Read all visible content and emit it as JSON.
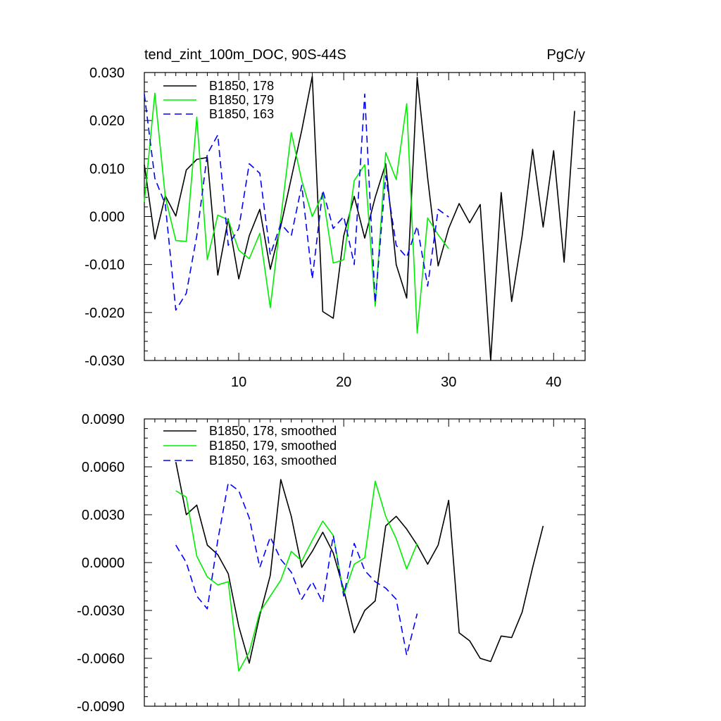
{
  "chart_data": [
    {
      "type": "line",
      "title": "tend_zint_100m_DOC, 90S-44S",
      "units": "PgC/y",
      "xlabel": "",
      "ylabel": "",
      "xlim": [
        1,
        43
      ],
      "ylim": [
        -0.03,
        0.03
      ],
      "x_ticks": [
        10,
        20,
        30,
        40
      ],
      "x_tick_labels": [
        "10",
        "20",
        "30",
        "40"
      ],
      "y_ticks": [
        -0.03,
        -0.02,
        -0.01,
        0.0,
        0.01,
        0.02,
        0.03
      ],
      "y_tick_labels": [
        "-0.030",
        "-0.020",
        "-0.010",
        "0.000",
        "0.010",
        "0.020",
        "0.030"
      ],
      "legend_position": "top-left",
      "series": [
        {
          "name": "B1850, 178",
          "color": "#000000",
          "dash": "solid",
          "x": [
            1,
            2,
            3,
            4,
            5,
            6,
            7,
            8,
            9,
            10,
            11,
            12,
            13,
            14,
            15,
            16,
            17,
            18,
            19,
            20,
            21,
            22,
            23,
            24,
            25,
            26,
            27,
            28,
            29,
            30,
            31,
            32,
            33,
            34,
            35,
            36,
            37,
            38,
            39,
            40,
            41,
            42
          ],
          "values": [
            0.0108,
            -0.0047,
            0.0043,
            0.0001,
            0.0097,
            0.0119,
            0.0123,
            -0.0122,
            -0.0005,
            -0.013,
            -0.004,
            0.0015,
            -0.011,
            -0.002,
            0.008,
            0.018,
            0.0292,
            -0.0198,
            -0.0212,
            -0.004,
            0.0042,
            -0.0045,
            0.004,
            0.011,
            -0.01,
            -0.017,
            0.029,
            0.008,
            -0.0103,
            -0.0025,
            0.0027,
            -0.0013,
            0.0025,
            -0.03,
            0.005,
            -0.0177,
            -0.004,
            0.014,
            -0.0022,
            0.0137,
            -0.0095,
            0.022
          ]
        },
        {
          "name": "B1850, 179",
          "color": "#00ee00",
          "dash": "solid",
          "x": [
            1,
            2,
            3,
            4,
            5,
            6,
            7,
            8,
            9,
            10,
            11,
            12,
            13,
            14,
            15,
            16,
            17,
            18,
            19,
            20,
            21,
            22,
            23,
            24,
            25,
            26,
            27,
            28,
            29,
            30
          ],
          "values": [
            0.003,
            0.0257,
            0.004,
            -0.005,
            -0.0052,
            0.0207,
            -0.009,
            0.0003,
            -0.0007,
            -0.007,
            -0.0088,
            -0.0035,
            -0.019,
            -0.0003,
            0.0175,
            0.0075,
            0.0,
            0.0047,
            -0.0097,
            -0.009,
            0.0075,
            0.0108,
            -0.0187,
            0.0133,
            0.0077,
            0.0235,
            -0.0243,
            -0.0003,
            -0.0038,
            -0.0067
          ]
        },
        {
          "name": "B1850, 163",
          "color": "#0000ff",
          "dash": "dashed",
          "x": [
            1,
            2,
            3,
            4,
            5,
            6,
            7,
            8,
            9,
            10,
            11,
            12,
            13,
            14,
            15,
            16,
            17,
            18,
            19,
            20,
            21,
            22,
            23,
            24,
            25,
            26,
            27,
            28,
            29,
            30
          ],
          "values": [
            0.0255,
            0.008,
            0.0025,
            -0.0195,
            -0.016,
            -0.004,
            0.013,
            0.017,
            -0.006,
            -0.0025,
            0.011,
            0.009,
            -0.008,
            -0.0015,
            -0.004,
            0.0065,
            -0.013,
            0.0055,
            -0.0025,
            0.0,
            -0.01,
            0.0255,
            -0.018,
            0.0085,
            -0.006,
            -0.0085,
            -0.002,
            -0.0145,
            0.0015,
            -0.0001
          ]
        }
      ]
    },
    {
      "type": "line",
      "title": "",
      "xlabel": "",
      "ylabel": "",
      "xlim": [
        1,
        43
      ],
      "ylim": [
        -0.009,
        0.009
      ],
      "x_ticks": [
        10,
        20,
        30,
        40
      ],
      "x_tick_labels": [
        "",
        "",
        "",
        ""
      ],
      "y_ticks": [
        -0.009,
        -0.006,
        -0.003,
        0.0,
        0.003,
        0.006,
        0.009
      ],
      "y_tick_labels": [
        "-0.0090",
        "-0.0060",
        "-0.0030",
        "0.0000",
        "0.0030",
        "0.0060",
        "0.0090"
      ],
      "legend_position": "top-left",
      "series": [
        {
          "name": "B1850, 178, smoothed",
          "color": "#000000",
          "dash": "solid",
          "x": [
            4,
            5,
            6,
            7,
            8,
            9,
            10,
            11,
            12,
            13,
            14,
            15,
            16,
            17,
            18,
            19,
            20,
            21,
            22,
            23,
            24,
            25,
            26,
            27,
            28,
            29,
            30,
            31,
            32,
            33,
            34,
            35,
            36,
            37,
            38,
            39
          ],
          "values": [
            0.0063,
            0.003,
            0.0036,
            0.0011,
            0.0005,
            -0.0007,
            -0.004,
            -0.0063,
            -0.0033,
            -0.0008,
            0.0052,
            0.0029,
            -0.0003,
            0.0007,
            0.0019,
            0.0006,
            -0.0017,
            -0.0044,
            -0.003,
            -0.0024,
            0.0023,
            0.0029,
            0.0021,
            0.0011,
            -0.0001,
            0.0011,
            0.0039,
            -0.0044,
            -0.0049,
            -0.006,
            -0.0062,
            -0.0046,
            -0.0047,
            -0.0031,
            -0.0003,
            0.0023
          ]
        },
        {
          "name": "B1850, 179, smoothed",
          "color": "#00ee00",
          "dash": "solid",
          "x": [
            4,
            5,
            6,
            7,
            8,
            9,
            10,
            11,
            12,
            13,
            14,
            15,
            16,
            17,
            18,
            19,
            20,
            21,
            22,
            23,
            24,
            25,
            26,
            27
          ],
          "values": [
            0.0045,
            0.0041,
            0.0004,
            -0.0009,
            -0.0014,
            -0.0012,
            -0.0068,
            -0.0056,
            -0.0031,
            -0.0021,
            -0.0011,
            0.0007,
            0.0001,
            0.0014,
            0.0026,
            0.0017,
            -0.002,
            -0.0001,
            0.0003,
            0.0051,
            0.0029,
            0.0015,
            -0.0004,
            0.0012
          ]
        },
        {
          "name": "B1850, 163, smoothed",
          "color": "#0000ff",
          "dash": "dashed",
          "x": [
            4,
            5,
            6,
            7,
            8,
            9,
            10,
            11,
            12,
            13,
            14,
            15,
            16,
            17,
            18,
            19,
            20,
            21,
            22,
            23,
            24,
            25,
            26,
            27
          ],
          "values": [
            0.0011,
            0.0,
            -0.0021,
            -0.0029,
            0.0014,
            0.005,
            0.0045,
            0.0028,
            -0.0003,
            0.0016,
            0.0002,
            -0.0006,
            -0.0023,
            -0.0012,
            -0.0025,
            0.0017,
            -0.0021,
            0.0012,
            -0.0005,
            -0.0012,
            -0.0016,
            -0.0023,
            -0.0058,
            -0.0032
          ]
        }
      ]
    }
  ]
}
